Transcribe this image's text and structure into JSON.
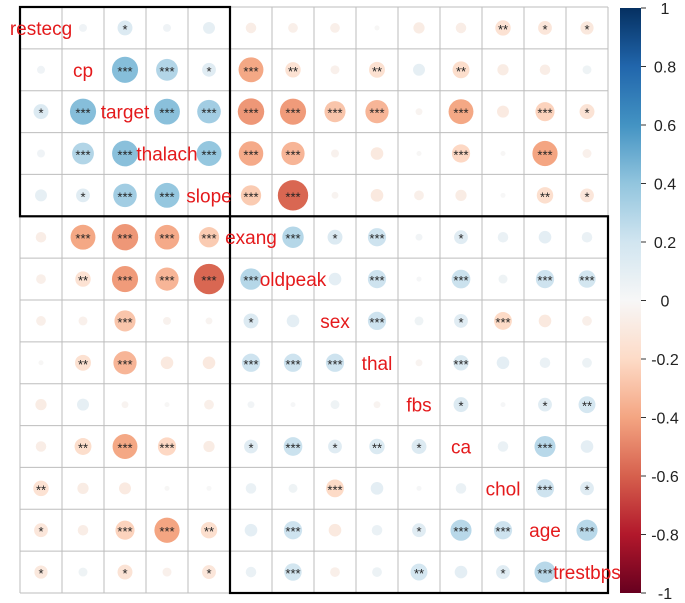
{
  "chart_data": {
    "type": "heatmap",
    "variables": [
      "restecg",
      "cp",
      "target",
      "thalach",
      "slope",
      "exang",
      "oldpeak",
      "sex",
      "thal",
      "fbs",
      "ca",
      "chol",
      "age",
      "trestbps"
    ],
    "correlations": [
      [
        1.0,
        0.04,
        0.14,
        0.04,
        0.09,
        -0.07,
        -0.06,
        -0.06,
        -0.01,
        -0.08,
        -0.07,
        -0.15,
        -0.12,
        -0.11
      ],
      [
        0.04,
        1.0,
        0.43,
        0.3,
        0.12,
        -0.39,
        -0.15,
        -0.05,
        -0.16,
        0.09,
        -0.18,
        -0.08,
        -0.07,
        0.05
      ],
      [
        0.14,
        0.43,
        1.0,
        0.42,
        0.35,
        -0.44,
        -0.43,
        -0.28,
        -0.34,
        -0.03,
        -0.39,
        -0.09,
        -0.23,
        -0.14
      ],
      [
        0.04,
        0.3,
        0.42,
        1.0,
        0.39,
        -0.38,
        -0.34,
        -0.04,
        -0.1,
        -0.01,
        -0.21,
        -0.01,
        -0.4,
        -0.05
      ],
      [
        0.09,
        0.12,
        0.35,
        0.39,
        1.0,
        -0.26,
        -0.58,
        -0.03,
        -0.1,
        -0.06,
        -0.08,
        0.0,
        -0.17,
        -0.12
      ],
      [
        -0.07,
        -0.39,
        -0.44,
        -0.38,
        -0.26,
        1.0,
        0.29,
        0.14,
        0.21,
        0.03,
        0.12,
        0.07,
        0.1,
        0.07
      ],
      [
        -0.06,
        -0.15,
        -0.43,
        -0.34,
        -0.58,
        0.29,
        1.0,
        0.1,
        0.21,
        0.01,
        0.22,
        0.05,
        0.21,
        0.19
      ],
      [
        -0.06,
        -0.05,
        -0.28,
        -0.04,
        -0.03,
        0.14,
        0.1,
        1.0,
        0.21,
        0.05,
        0.12,
        -0.2,
        -0.1,
        -0.06
      ],
      [
        -0.01,
        -0.16,
        -0.34,
        -0.1,
        -0.1,
        0.21,
        0.21,
        0.21,
        1.0,
        -0.03,
        0.15,
        0.1,
        0.07,
        0.06
      ],
      [
        -0.08,
        0.09,
        -0.03,
        -0.01,
        -0.06,
        0.03,
        0.01,
        0.05,
        -0.03,
        1.0,
        0.14,
        0.01,
        0.12,
        0.18
      ],
      [
        -0.07,
        -0.18,
        -0.39,
        -0.21,
        -0.08,
        0.12,
        0.22,
        0.12,
        0.15,
        0.14,
        1.0,
        0.07,
        0.28,
        0.1
      ],
      [
        -0.15,
        -0.08,
        -0.09,
        -0.01,
        0.0,
        0.07,
        0.05,
        -0.2,
        0.1,
        0.01,
        0.07,
        1.0,
        0.21,
        0.12
      ],
      [
        -0.12,
        -0.07,
        -0.23,
        -0.4,
        -0.17,
        0.1,
        0.21,
        -0.1,
        0.07,
        0.12,
        0.28,
        0.21,
        1.0,
        0.28
      ],
      [
        -0.11,
        0.05,
        -0.14,
        -0.05,
        -0.12,
        0.07,
        0.19,
        -0.06,
        0.06,
        0.18,
        0.1,
        0.12,
        0.28,
        1.0
      ]
    ],
    "significance": [
      [
        "",
        "",
        "*",
        "",
        "",
        "",
        "",
        "",
        "",
        "",
        "",
        "**",
        "*",
        "*"
      ],
      [
        "",
        "",
        "***",
        "***",
        "*",
        "***",
        "**",
        "",
        "**",
        "",
        "**",
        "",
        "",
        ""
      ],
      [
        "*",
        "***",
        "",
        "***",
        "***",
        "***",
        "***",
        "***",
        "***",
        "",
        "***",
        "",
        "***",
        "*"
      ],
      [
        "",
        "***",
        "***",
        "",
        "***",
        "***",
        "***",
        "",
        "",
        "",
        "***",
        "",
        "***",
        ""
      ],
      [
        "",
        "*",
        "***",
        "***",
        "",
        "***",
        "***",
        "",
        "",
        "",
        "",
        "",
        "**",
        "*"
      ],
      [
        "",
        "***",
        "***",
        "***",
        "***",
        "",
        "***",
        "*",
        "***",
        "",
        "*",
        "",
        "",
        ""
      ],
      [
        "",
        "**",
        "***",
        "***",
        "***",
        "***",
        "",
        "",
        "***",
        "",
        "***",
        "",
        "***",
        "***"
      ],
      [
        "",
        "",
        "***",
        "",
        "",
        "*",
        "",
        "",
        "***",
        "",
        "*",
        "***",
        "",
        ""
      ],
      [
        "",
        "**",
        "***",
        "",
        "",
        "***",
        "***",
        "***",
        "",
        "",
        "***",
        "",
        "",
        ""
      ],
      [
        "",
        "",
        "",
        "",
        "",
        "",
        "",
        "",
        "",
        "",
        "*",
        "",
        "*",
        "**"
      ],
      [
        "",
        "**",
        "***",
        "***",
        "",
        "*",
        "***",
        "*",
        "**",
        "*",
        "",
        "",
        "***",
        ""
      ],
      [
        "**",
        "",
        "",
        "",
        "",
        "",
        "",
        "***",
        "",
        "",
        "",
        "",
        "***",
        "*"
      ],
      [
        "*",
        "",
        "***",
        "***",
        "**",
        "",
        "***",
        "",
        "",
        "*",
        "***",
        "***",
        "",
        "***"
      ],
      [
        "*",
        "",
        "*",
        "",
        "*",
        "",
        "***",
        "",
        "",
        "**",
        "",
        "*",
        "***",
        ""
      ]
    ],
    "clusters": [
      [
        0,
        4
      ],
      [
        5,
        13
      ]
    ],
    "colorbar": {
      "ticks": [
        "1",
        "0.8",
        "0.6",
        "0.4",
        "0.2",
        "0",
        "-0.2",
        "-0.4",
        "-0.6",
        "-0.8",
        "-1"
      ]
    },
    "colors": {
      "positive": "#053061",
      "negative": "#67001f",
      "neutral": "#f7f7f7",
      "label": "#e41a1c",
      "grid": "#bdbdbd",
      "cluster_box": "#000000"
    }
  }
}
